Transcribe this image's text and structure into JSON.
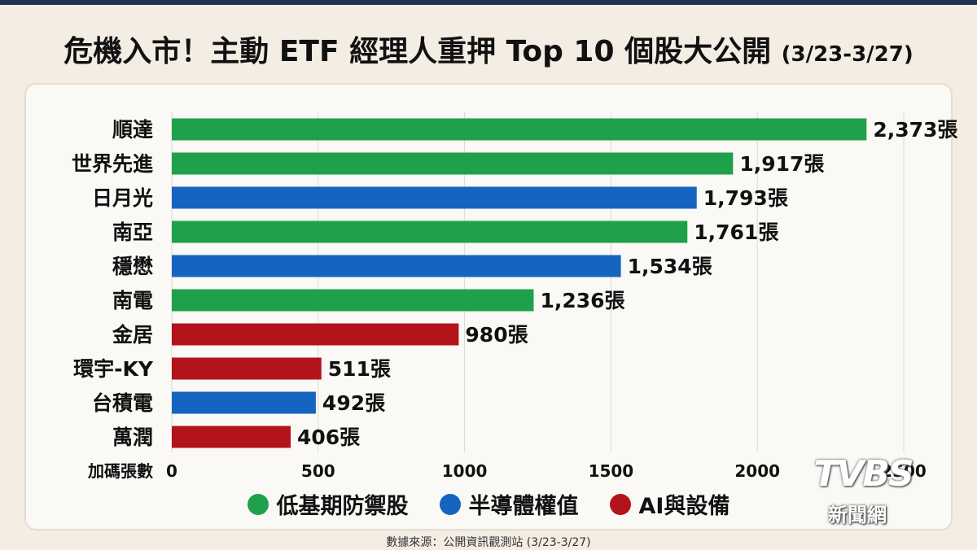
{
  "title": {
    "main": "危機入市！主動 ETF 經理人重押 Top 10 個股大公開",
    "date": "(3/23-3/27)"
  },
  "source": "數據來源：公開資訊觀測站 (3/23-3/27)",
  "logo": {
    "brand": "TVBS",
    "sub": "新聞網"
  },
  "colors": {
    "low_base": "#1fa04a",
    "semi": "#1565c0",
    "ai": "#b3131b"
  },
  "legend": [
    {
      "label": "低基期防禦股",
      "color": "#1fa04a"
    },
    {
      "label": "半導體權值",
      "color": "#1565c0"
    },
    {
      "label": "AI與設備",
      "color": "#b3131b"
    }
  ],
  "chart_data": {
    "type": "bar",
    "orientation": "horizontal",
    "xlabel": "加碼張數",
    "xlim": [
      0,
      2500
    ],
    "xticks": [
      "0",
      "500",
      "1000",
      "1500",
      "2000",
      "2500"
    ],
    "grid": true,
    "categories": [
      "順達",
      "世界先進",
      "日月光",
      "南亞",
      "穩懋",
      "南電",
      "金居",
      "環宇-KY",
      "台積電",
      "萬潤"
    ],
    "values": [
      2373,
      1917,
      1793,
      1761,
      1534,
      1236,
      980,
      511,
      492,
      406
    ],
    "value_labels": [
      "2,373張",
      "1,917張",
      "1,793張",
      "1,761張",
      "1,534張",
      "1,236張",
      "980張",
      "511張",
      "492張",
      "406張"
    ],
    "groups": [
      "low_base",
      "low_base",
      "semi",
      "low_base",
      "semi",
      "low_base",
      "ai",
      "ai",
      "semi",
      "ai"
    ],
    "legend_position": "bottom"
  }
}
